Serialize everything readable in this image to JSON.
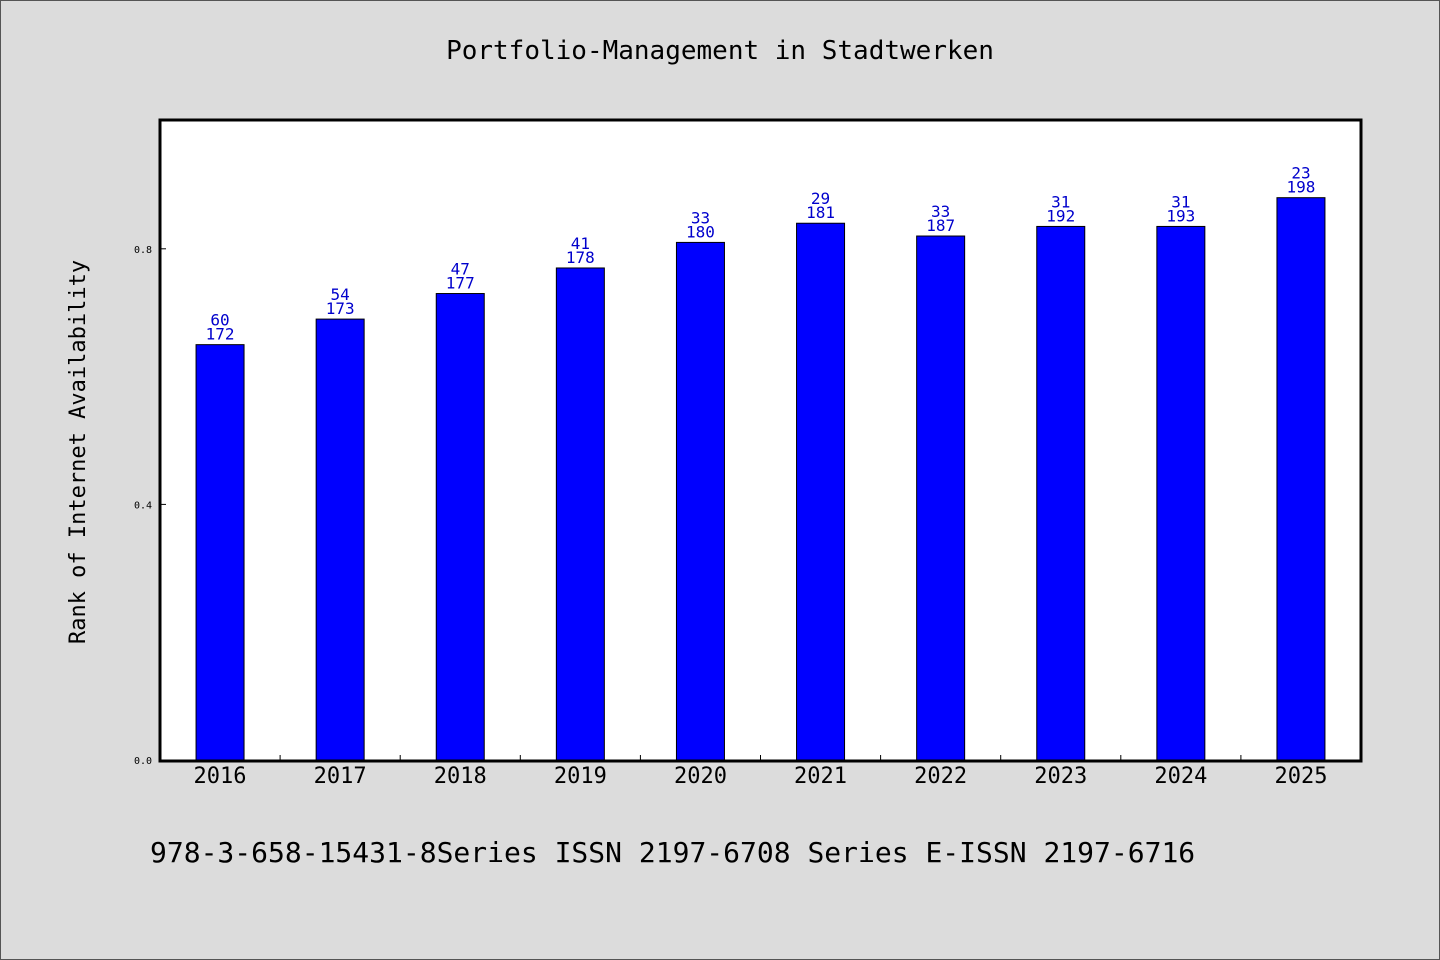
{
  "chart_data": {
    "type": "bar",
    "title": "Portfolio-Management in Stadtwerken",
    "xlabel": "",
    "ylabel": "Rank of Internet Availability",
    "ylim": [
      0,
      1.0
    ],
    "yticks": [
      "0.0",
      "0.4",
      "0.8"
    ],
    "ytick_values": [
      0.0,
      0.4,
      0.8
    ],
    "grid": false,
    "categories": [
      "2016",
      "2017",
      "2018",
      "2019",
      "2020",
      "2021",
      "2022",
      "2023",
      "2024",
      "2025"
    ],
    "values": [
      0.65,
      0.69,
      0.73,
      0.77,
      0.81,
      0.84,
      0.82,
      0.835,
      0.835,
      0.88
    ],
    "label_top": [
      "60",
      "54",
      "47",
      "41",
      "33",
      "29",
      "33",
      "31",
      "31",
      "23"
    ],
    "label_bottom": [
      "172",
      "173",
      "177",
      "178",
      "180",
      "181",
      "187",
      "192",
      "193",
      "198"
    ],
    "bar_color": "#0000ff",
    "label_color": "#0000cc"
  },
  "footer": "978-3-658-15431-8Series ISSN 2197-6708 Series E-ISSN 2197-6716"
}
